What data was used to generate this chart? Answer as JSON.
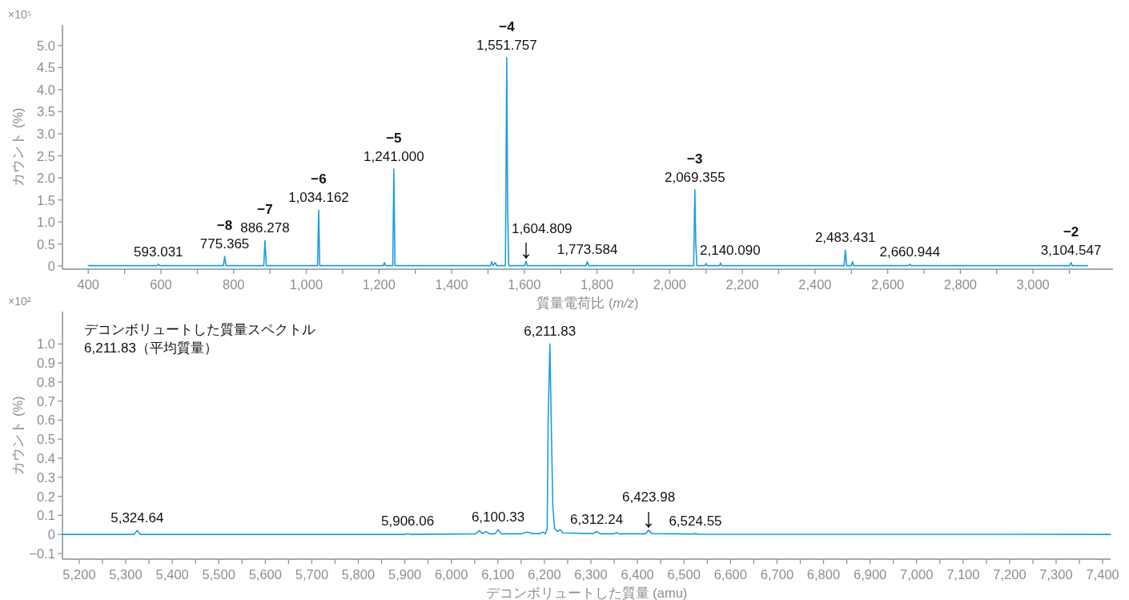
{
  "chart_data": [
    {
      "type": "line",
      "ylabel": "カウント (%)",
      "xlabel": "質量電荷比 (*m/z*)",
      "xlim": [
        329,
        3220
      ],
      "ylim": [
        -0.07,
        5.47
      ],
      "xticks": [
        400,
        {
          "value": 500,
          "label": null
        },
        600,
        {
          "value": 700,
          "label": null
        },
        800,
        {
          "value": 900,
          "label": null
        },
        {
          "value": 1000,
          "label": "1,000"
        },
        {
          "value": 1100,
          "label": null
        },
        {
          "value": 1200,
          "label": "1,200"
        },
        {
          "value": 1300,
          "label": null
        },
        {
          "value": 1400,
          "label": "1,400"
        },
        {
          "value": 1500,
          "label": null
        },
        {
          "value": 1600,
          "label": "1,600"
        },
        {
          "value": 1700,
          "label": null
        },
        {
          "value": 1800,
          "label": "1,800"
        },
        {
          "value": 1900,
          "label": null
        },
        {
          "value": 2000,
          "label": "2,000"
        },
        {
          "value": 2100,
          "label": null
        },
        {
          "value": 2200,
          "label": "2,200"
        },
        {
          "value": 2300,
          "label": null
        },
        {
          "value": 2400,
          "label": "2,400"
        },
        {
          "value": 2500,
          "label": null
        },
        {
          "value": 2600,
          "label": "2,600"
        },
        {
          "value": 2700,
          "label": null
        },
        {
          "value": 2800,
          "label": "2,800"
        },
        {
          "value": 2900,
          "label": null
        },
        {
          "value": 3000,
          "label": "3,000"
        },
        {
          "value": 3100,
          "label": null
        }
      ],
      "yticks": [
        0,
        0.5,
        {
          "value": 1,
          "label": "1.0"
        },
        1.5,
        {
          "value": 2,
          "label": "2.0"
        },
        2.5,
        {
          "value": 3,
          "label": "3.0"
        },
        3.5,
        {
          "value": 4,
          "label": "4.0"
        },
        4.5,
        {
          "value": 5,
          "label": "5.0"
        }
      ],
      "series": [
        {
          "color": "#1a9fe0",
          "x": [
            400,
            590,
            593.031,
            596,
            772,
            775.365,
            779,
            883,
            886.278,
            890,
            1031,
            1034.162,
            1037,
            1212,
            1215,
            1218,
            1238,
            1241.0,
            1244,
            1507,
            1510,
            1514,
            1520,
            1524,
            1548,
            1551.757,
            1554,
            1557,
            1601,
            1604.809,
            1608,
            1770,
            1773.584,
            1777,
            2066,
            2069.355,
            2072,
            2075,
            2097,
            2100,
            2103,
            2137,
            2140.09,
            2143,
            2480,
            2483.431,
            2487,
            2500,
            2503,
            2506,
            2657,
            2660.944,
            2664,
            3101,
            3104.547,
            3108,
            3150
          ],
          "values": [
            0.01,
            0.01,
            0.04,
            0.01,
            0.01,
            0.22,
            0.01,
            0.01,
            0.58,
            0.01,
            0.01,
            1.27,
            0.01,
            0.01,
            0.08,
            0.01,
            0.01,
            2.2,
            0.01,
            0.01,
            0.1,
            0.01,
            0.08,
            0.01,
            0.01,
            4.73,
            1.4,
            0.01,
            0.01,
            0.11,
            0.01,
            0.01,
            0.1,
            0.01,
            0.01,
            1.73,
            0.5,
            0.01,
            0.01,
            0.06,
            0.01,
            0.01,
            0.07,
            0.01,
            0.01,
            0.36,
            0.01,
            0.01,
            0.1,
            0.01,
            0.01,
            0.04,
            0.01,
            0.01,
            0.08,
            0.01,
            0.01
          ]
        }
      ],
      "annotations": [
        {
          "text": "×10⁵"
        },
        {
          "text": "593.031",
          "x": 593.031,
          "y": 0.04
        },
        {
          "text": "775.365",
          "x": 775.365,
          "y": 0.22
        },
        {
          "text": "**−8**",
          "x": 775.365,
          "y": 0.22
        },
        {
          "text": "886.278",
          "x": 886.278,
          "y": 0.58
        },
        {
          "text": "**−7**",
          "x": 886.278,
          "y": 0.58
        },
        {
          "text": "1,034.162",
          "x": 1034.162,
          "y": 1.27
        },
        {
          "text": "**−6**",
          "x": 1034.162,
          "y": 1.27
        },
        {
          "text": "1,241.000",
          "x": 1241.0,
          "y": 2.2
        },
        {
          "text": "**−5**",
          "x": 1241.0,
          "y": 2.2
        },
        {
          "text": "1,551.757",
          "x": 1551.757,
          "y": 4.73
        },
        {
          "text": "**−4**",
          "x": 1551.757,
          "y": 4.73
        },
        {
          "text": "↓",
          "x": 1604.809,
          "y": 0.11
        },
        {
          "text": "1,604.809",
          "x": 1604.809,
          "y": 0.11
        },
        {
          "text": "1,773.584",
          "x": 1773.584,
          "y": 0.1
        },
        {
          "text": "2,069.355",
          "x": 2069.355,
          "y": 1.73
        },
        {
          "text": "**−3**",
          "x": 2069.355,
          "y": 1.73
        },
        {
          "text": "2,140.090",
          "x": 2140.09,
          "y": 0.07
        },
        {
          "text": "2,483.431",
          "x": 2483.431,
          "y": 0.36
        },
        {
          "text": "2,660.944",
          "x": 2660.944,
          "y": 0.04
        },
        {
          "text": "3,104.547",
          "x": 3104.547,
          "y": 0.08
        },
        {
          "text": "**−2**",
          "x": 3104.547,
          "y": 0.08
        }
      ]
    },
    {
      "type": "line",
      "ylabel": "カウント (%)",
      "xlabel": "デコンボリュートした質量 (amu)",
      "xlim": [
        5164,
        7417
      ],
      "ylim": [
        -0.13,
        1.17
      ],
      "xticks": [
        {
          "value": 5200,
          "label": "5,200"
        },
        {
          "value": 5250,
          "label": null
        },
        {
          "value": 5300,
          "label": "5,300"
        },
        {
          "value": 5350,
          "label": null
        },
        {
          "value": 5400,
          "label": "5,400"
        },
        {
          "value": 5450,
          "label": null
        },
        {
          "value": 5500,
          "label": "5,500"
        },
        {
          "value": 5550,
          "label": null
        },
        {
          "value": 5600,
          "label": "5,600"
        },
        {
          "value": 5650,
          "label": null
        },
        {
          "value": 5700,
          "label": "5,700"
        },
        {
          "value": 5750,
          "label": null
        },
        {
          "value": 5800,
          "label": "5,800"
        },
        {
          "value": 5850,
          "label": null
        },
        {
          "value": 5900,
          "label": "5,900"
        },
        {
          "value": 5950,
          "label": null
        },
        {
          "value": 6000,
          "label": "6,000"
        },
        {
          "value": 6050,
          "label": null
        },
        {
          "value": 6100,
          "label": "6,100"
        },
        {
          "value": 6150,
          "label": null
        },
        {
          "value": 6200,
          "label": "6,200"
        },
        {
          "value": 6250,
          "label": null
        },
        {
          "value": 6300,
          "label": "6,300"
        },
        {
          "value": 6350,
          "label": null
        },
        {
          "value": 6400,
          "label": "6,400"
        },
        {
          "value": 6450,
          "label": null
        },
        {
          "value": 6500,
          "label": "6,500"
        },
        {
          "value": 6550,
          "label": null
        },
        {
          "value": 6600,
          "label": "6,600"
        },
        {
          "value": 6650,
          "label": null
        },
        {
          "value": 6700,
          "label": "6,700"
        },
        {
          "value": 6750,
          "label": null
        },
        {
          "value": 6800,
          "label": "6,800"
        },
        {
          "value": 6850,
          "label": null
        },
        {
          "value": 6900,
          "label": "6,900"
        },
        {
          "value": 6950,
          "label": null
        },
        {
          "value": 7000,
          "label": "7,000"
        },
        {
          "value": 7050,
          "label": null
        },
        {
          "value": 7100,
          "label": "7,100"
        },
        {
          "value": 7150,
          "label": null
        },
        {
          "value": 7200,
          "label": "7,200"
        },
        {
          "value": 7250,
          "label": null
        },
        {
          "value": 7300,
          "label": "7,300"
        },
        {
          "value": 7350,
          "label": null
        },
        {
          "value": 7400,
          "label": "7,400"
        }
      ],
      "yticks": [
        {
          "value": -0.1,
          "label": "−0.1"
        },
        0,
        0.1,
        0.2,
        0.3,
        0.4,
        0.5,
        0.6,
        0.7,
        0.8,
        0.9,
        {
          "value": 1,
          "label": "1.0"
        }
      ],
      "series": [
        {
          "color": "#1a9fe0",
          "x": [
            5164,
            5318,
            5324.64,
            5331,
            5900,
            5906.06,
            5912,
            6052,
            6060,
            6066,
            6075,
            6082,
            6094,
            6100.33,
            6107,
            6150,
            6162,
            6175,
            6190,
            6196,
            6202,
            6206,
            6208,
            6211.83,
            6215,
            6218,
            6222,
            6228,
            6234,
            6240,
            6305,
            6312.24,
            6320,
            6350,
            6355,
            6360,
            6417,
            6423.98,
            6431,
            6518,
            6524.55,
            6530,
            7417
          ],
          "values": [
            0,
            0,
            0.02,
            0,
            0,
            0.004,
            0,
            0.003,
            0.02,
            0.005,
            0.015,
            0.003,
            0.003,
            0.025,
            0.003,
            0.003,
            0.012,
            0.004,
            0.004,
            0.012,
            0.003,
            0.03,
            0.6,
            1.0,
            0.55,
            0.15,
            0.03,
            0.015,
            0.025,
            0.008,
            0.004,
            0.015,
            0.003,
            0.003,
            0.01,
            0.003,
            0.003,
            0.022,
            0.004,
            0.002,
            0.004,
            0.001,
            0
          ]
        }
      ],
      "annotations": [
        {
          "text": "×10²"
        },
        "デコンボリュートした質量スペクトル",
        "6,211.83（平均質量）",
        {
          "text": "5,324.64",
          "x": 5324.64,
          "y": 0.02
        },
        {
          "text": "5,906.06",
          "x": 5906.06,
          "y": 0.004
        },
        {
          "text": "6,100.33",
          "x": 6100.33,
          "y": 0.025
        },
        {
          "text": "6,211.83",
          "x": 6211.83,
          "y": 1.0
        },
        {
          "text": "6,312.24",
          "x": 6312.24,
          "y": 0.015
        },
        {
          "text": "↓",
          "x": 6423.98,
          "y": 0.022
        },
        {
          "text": "6,423.98",
          "x": 6423.98,
          "y": 0.022
        },
        {
          "text": "6,524.55",
          "x": 6524.55,
          "y": 0.004
        }
      ]
    }
  ]
}
